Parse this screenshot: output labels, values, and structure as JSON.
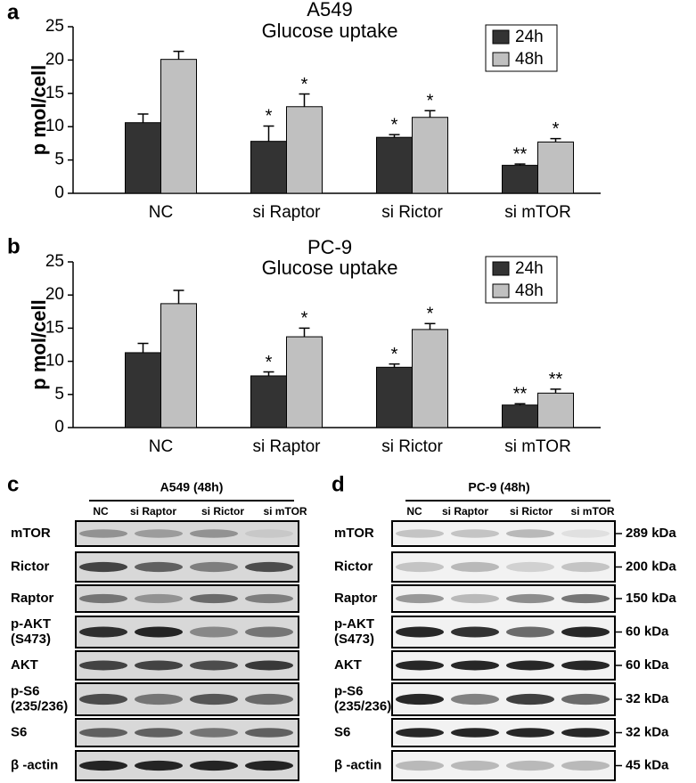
{
  "chart_data": [
    {
      "type": "bar",
      "panel": "a",
      "title": "A549",
      "subtitle": "Glucose uptake",
      "ylabel": "p mol/cell",
      "categories": [
        "NC",
        "si Raptor",
        "si Rictor",
        "si mTOR"
      ],
      "series": [
        {
          "name": "24h",
          "color": "#333333",
          "values": [
            10.6,
            7.8,
            8.4,
            4.2
          ],
          "errors": [
            1.3,
            2.3,
            0.4,
            0.2
          ],
          "annotations": [
            null,
            "*",
            "*",
            "**"
          ]
        },
        {
          "name": "48h",
          "color": "#c0c0c0",
          "values": [
            20.1,
            13.0,
            11.4,
            7.7
          ],
          "errors": [
            1.2,
            1.9,
            1.0,
            0.5
          ],
          "annotations": [
            null,
            "*",
            "*",
            "*"
          ]
        }
      ],
      "ylim": [
        0,
        25
      ],
      "yticks": [
        0,
        5,
        10,
        15,
        20,
        25
      ],
      "legend": "top-right"
    },
    {
      "type": "bar",
      "panel": "b",
      "title": "PC-9",
      "subtitle": "Glucose uptake",
      "ylabel": "p mol/cell",
      "categories": [
        "NC",
        "si Raptor",
        "si Rictor",
        "si mTOR"
      ],
      "series": [
        {
          "name": "24h",
          "color": "#333333",
          "values": [
            11.3,
            7.8,
            9.1,
            3.4
          ],
          "errors": [
            1.4,
            0.6,
            0.5,
            0.2
          ],
          "annotations": [
            null,
            "*",
            "*",
            "**"
          ]
        },
        {
          "name": "48h",
          "color": "#c0c0c0",
          "values": [
            18.7,
            13.7,
            14.8,
            5.2
          ],
          "errors": [
            2.0,
            1.3,
            0.9,
            0.6
          ],
          "annotations": [
            null,
            "*",
            "*",
            "**"
          ]
        }
      ],
      "ylim": [
        0,
        25
      ],
      "yticks": [
        0,
        5,
        10,
        15,
        20,
        25
      ],
      "legend": "top-right"
    }
  ],
  "blots": [
    {
      "panel": "c",
      "title": "A549 (48h)",
      "lanes": [
        "NC",
        "si Raptor",
        "si Rictor",
        "si mTOR"
      ],
      "rows": [
        {
          "label": [
            "mTOR"
          ]
        },
        {
          "label": [
            "Rictor"
          ]
        },
        {
          "label": [
            "Raptor"
          ]
        },
        {
          "label": [
            "p-AKT",
            "(S473)"
          ]
        },
        {
          "label": [
            "AKT"
          ]
        },
        {
          "label": [
            "p-S6",
            "(235/236)"
          ]
        },
        {
          "label": [
            "S6"
          ]
        },
        {
          "label": [
            "β -actin"
          ]
        }
      ]
    },
    {
      "panel": "d",
      "title": "PC-9 (48h)",
      "lanes": [
        "NC",
        "si Raptor",
        "si Rictor",
        "si mTOR"
      ],
      "rows": [
        {
          "label": [
            "mTOR"
          ],
          "size": "289 kDa"
        },
        {
          "label": [
            "Rictor"
          ],
          "size": "200 kDa"
        },
        {
          "label": [
            "Raptor"
          ],
          "size": "150 kDa"
        },
        {
          "label": [
            "p-AKT",
            "(S473)"
          ],
          "size": "60 kDa"
        },
        {
          "label": [
            "AKT"
          ],
          "size": "60 kDa"
        },
        {
          "label": [
            "p-S6",
            "(235/236)"
          ],
          "size": "32 kDa"
        },
        {
          "label": [
            "S6"
          ],
          "size": "32 kDa"
        },
        {
          "label": [
            "β -actin"
          ],
          "size": "45 kDa"
        }
      ]
    }
  ]
}
